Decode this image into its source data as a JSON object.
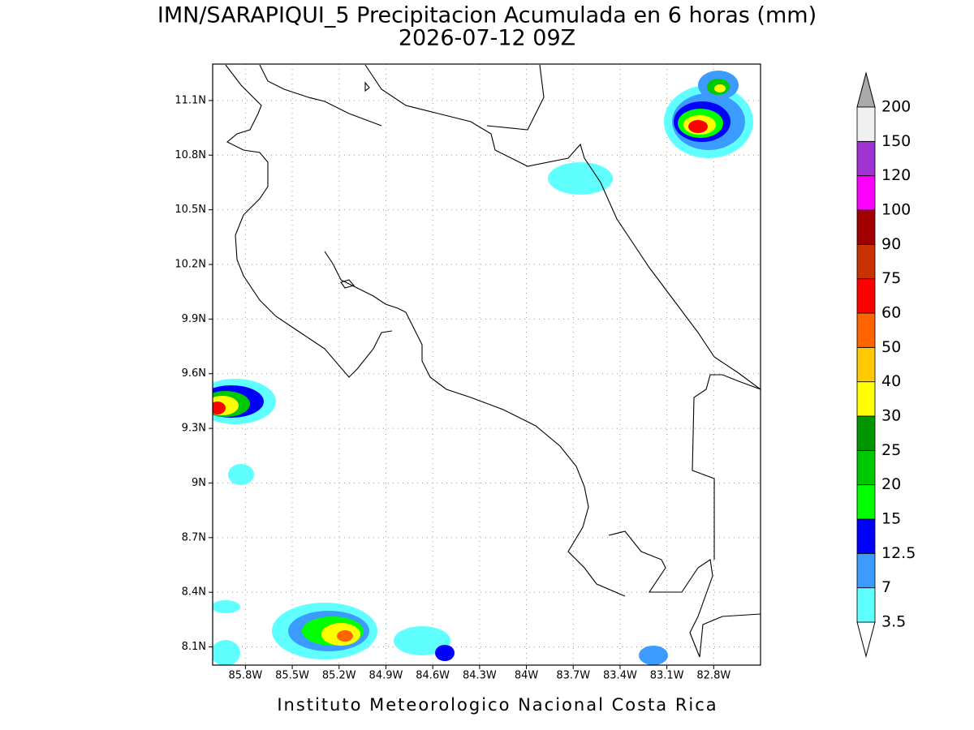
{
  "map": {
    "title": "IMN/SARAPIQUI_5 Precipitacion Acumulada en 6 horas (mm)",
    "subtitle": "2026-07-12 09Z",
    "footer": "Instituto Meteorologico Nacional Costa Rica",
    "xlim": [
      -86.01,
      -82.5
    ],
    "ylim": [
      8.0,
      11.3
    ],
    "xticks": [
      {
        "value": -85.8,
        "label": "85.8W"
      },
      {
        "value": -85.5,
        "label": "85.5W"
      },
      {
        "value": -85.2,
        "label": "85.2W"
      },
      {
        "value": -84.9,
        "label": "84.9W"
      },
      {
        "value": -84.6,
        "label": "84.6W"
      },
      {
        "value": -84.3,
        "label": "84.3W"
      },
      {
        "value": -84.0,
        "label": "84W"
      },
      {
        "value": -83.7,
        "label": "83.7W"
      },
      {
        "value": -83.4,
        "label": "83.4W"
      },
      {
        "value": -83.1,
        "label": "83.1W"
      },
      {
        "value": -82.8,
        "label": "82.8W"
      }
    ],
    "yticks": [
      {
        "value": 8.1,
        "label": "8.1N"
      },
      {
        "value": 8.4,
        "label": "8.4N"
      },
      {
        "value": 8.7,
        "label": "8.7N"
      },
      {
        "value": 9.0,
        "label": "9N"
      },
      {
        "value": 9.3,
        "label": "9.3N"
      },
      {
        "value": 9.6,
        "label": "9.6N"
      },
      {
        "value": 9.9,
        "label": "9.9N"
      },
      {
        "value": 10.2,
        "label": "10.2N"
      },
      {
        "value": 10.5,
        "label": "10.5N"
      },
      {
        "value": 10.8,
        "label": "10.8N"
      },
      {
        "value": 11.1,
        "label": "11.1N"
      }
    ],
    "grid": true,
    "colorbar": {
      "levels": [
        3.5,
        7,
        12.5,
        15,
        20,
        25,
        30,
        40,
        50,
        60,
        75,
        90,
        100,
        120,
        150,
        200
      ],
      "colors": [
        "#ffffff",
        "#60ffff",
        "#3c9bff",
        "#0000ff",
        "#00ff00",
        "#00c800",
        "#009600",
        "#ffff00",
        "#ffc800",
        "#ff6400",
        "#ff0000",
        "#c83200",
        "#a00000",
        "#ff00ff",
        "#a032d2",
        "#f0f0f0",
        "#aaaaaa"
      ]
    }
  }
}
